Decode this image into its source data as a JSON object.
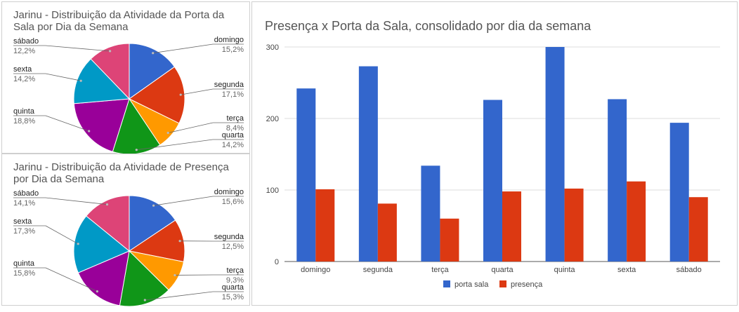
{
  "pies": [
    {
      "title": "Jarinu - Distribuição da Atividade da Porta da Sala por Dia da Semana",
      "chart_data": {
        "type": "pie",
        "title": "Jarinu - Distribuição da Atividade da Porta da Sala por Dia da Semana",
        "slices": [
          {
            "label": "domingo",
            "pct_label": "15,2%",
            "value": 15.2,
            "color": "#3366cc"
          },
          {
            "label": "segunda",
            "pct_label": "17,1%",
            "value": 17.1,
            "color": "#dc3912"
          },
          {
            "label": "terça",
            "pct_label": "8,4%",
            "value": 8.4,
            "color": "#ff9900"
          },
          {
            "label": "quarta",
            "pct_label": "14,2%",
            "value": 14.2,
            "color": "#109618"
          },
          {
            "label": "quinta",
            "pct_label": "18,8%",
            "value": 18.8,
            "color": "#990099"
          },
          {
            "label": "sexta",
            "pct_label": "14,2%",
            "value": 14.2,
            "color": "#0099c6"
          },
          {
            "label": "sábado",
            "pct_label": "12,2%",
            "value": 12.2,
            "color": "#dd4477"
          }
        ]
      }
    },
    {
      "title": "Jarinu - Distribuição da Atividade de Presença por Dia da Semana",
      "chart_data": {
        "type": "pie",
        "title": "Jarinu - Distribuição da Atividade de Presença por Dia da Semana",
        "slices": [
          {
            "label": "domingo",
            "pct_label": "15,6%",
            "value": 15.6,
            "color": "#3366cc"
          },
          {
            "label": "segunda",
            "pct_label": "12,5%",
            "value": 12.5,
            "color": "#dc3912"
          },
          {
            "label": "terça",
            "pct_label": "9,3%",
            "value": 9.3,
            "color": "#ff9900"
          },
          {
            "label": "quarta",
            "pct_label": "15,3%",
            "value": 15.3,
            "color": "#109618"
          },
          {
            "label": "quinta",
            "pct_label": "15,8%",
            "value": 15.8,
            "color": "#990099"
          },
          {
            "label": "sexta",
            "pct_label": "17,3%",
            "value": 17.3,
            "color": "#0099c6"
          },
          {
            "label": "sábado",
            "pct_label": "14,1%",
            "value": 14.1,
            "color": "#dd4477"
          }
        ]
      }
    }
  ],
  "bar": {
    "title": "Presença x Porta da Sala, consolidado por dia da semana",
    "chart_data": {
      "type": "bar",
      "title": "Presença x Porta da Sala, consolidado por dia da semana",
      "categories": [
        "domingo",
        "segunda",
        "terça",
        "quarta",
        "quinta",
        "sexta",
        "sábado"
      ],
      "series": [
        {
          "name": "porta sala",
          "color": "#3366cc",
          "values": [
            242,
            273,
            134,
            226,
            300,
            227,
            194
          ]
        },
        {
          "name": "presença",
          "color": "#dc3912",
          "values": [
            101,
            81,
            60,
            98,
            102,
            112,
            90
          ]
        }
      ],
      "ylim": [
        0,
        300
      ],
      "yticks": [
        0,
        100,
        200,
        300
      ],
      "grid": true,
      "legend_position": "bottom"
    }
  }
}
